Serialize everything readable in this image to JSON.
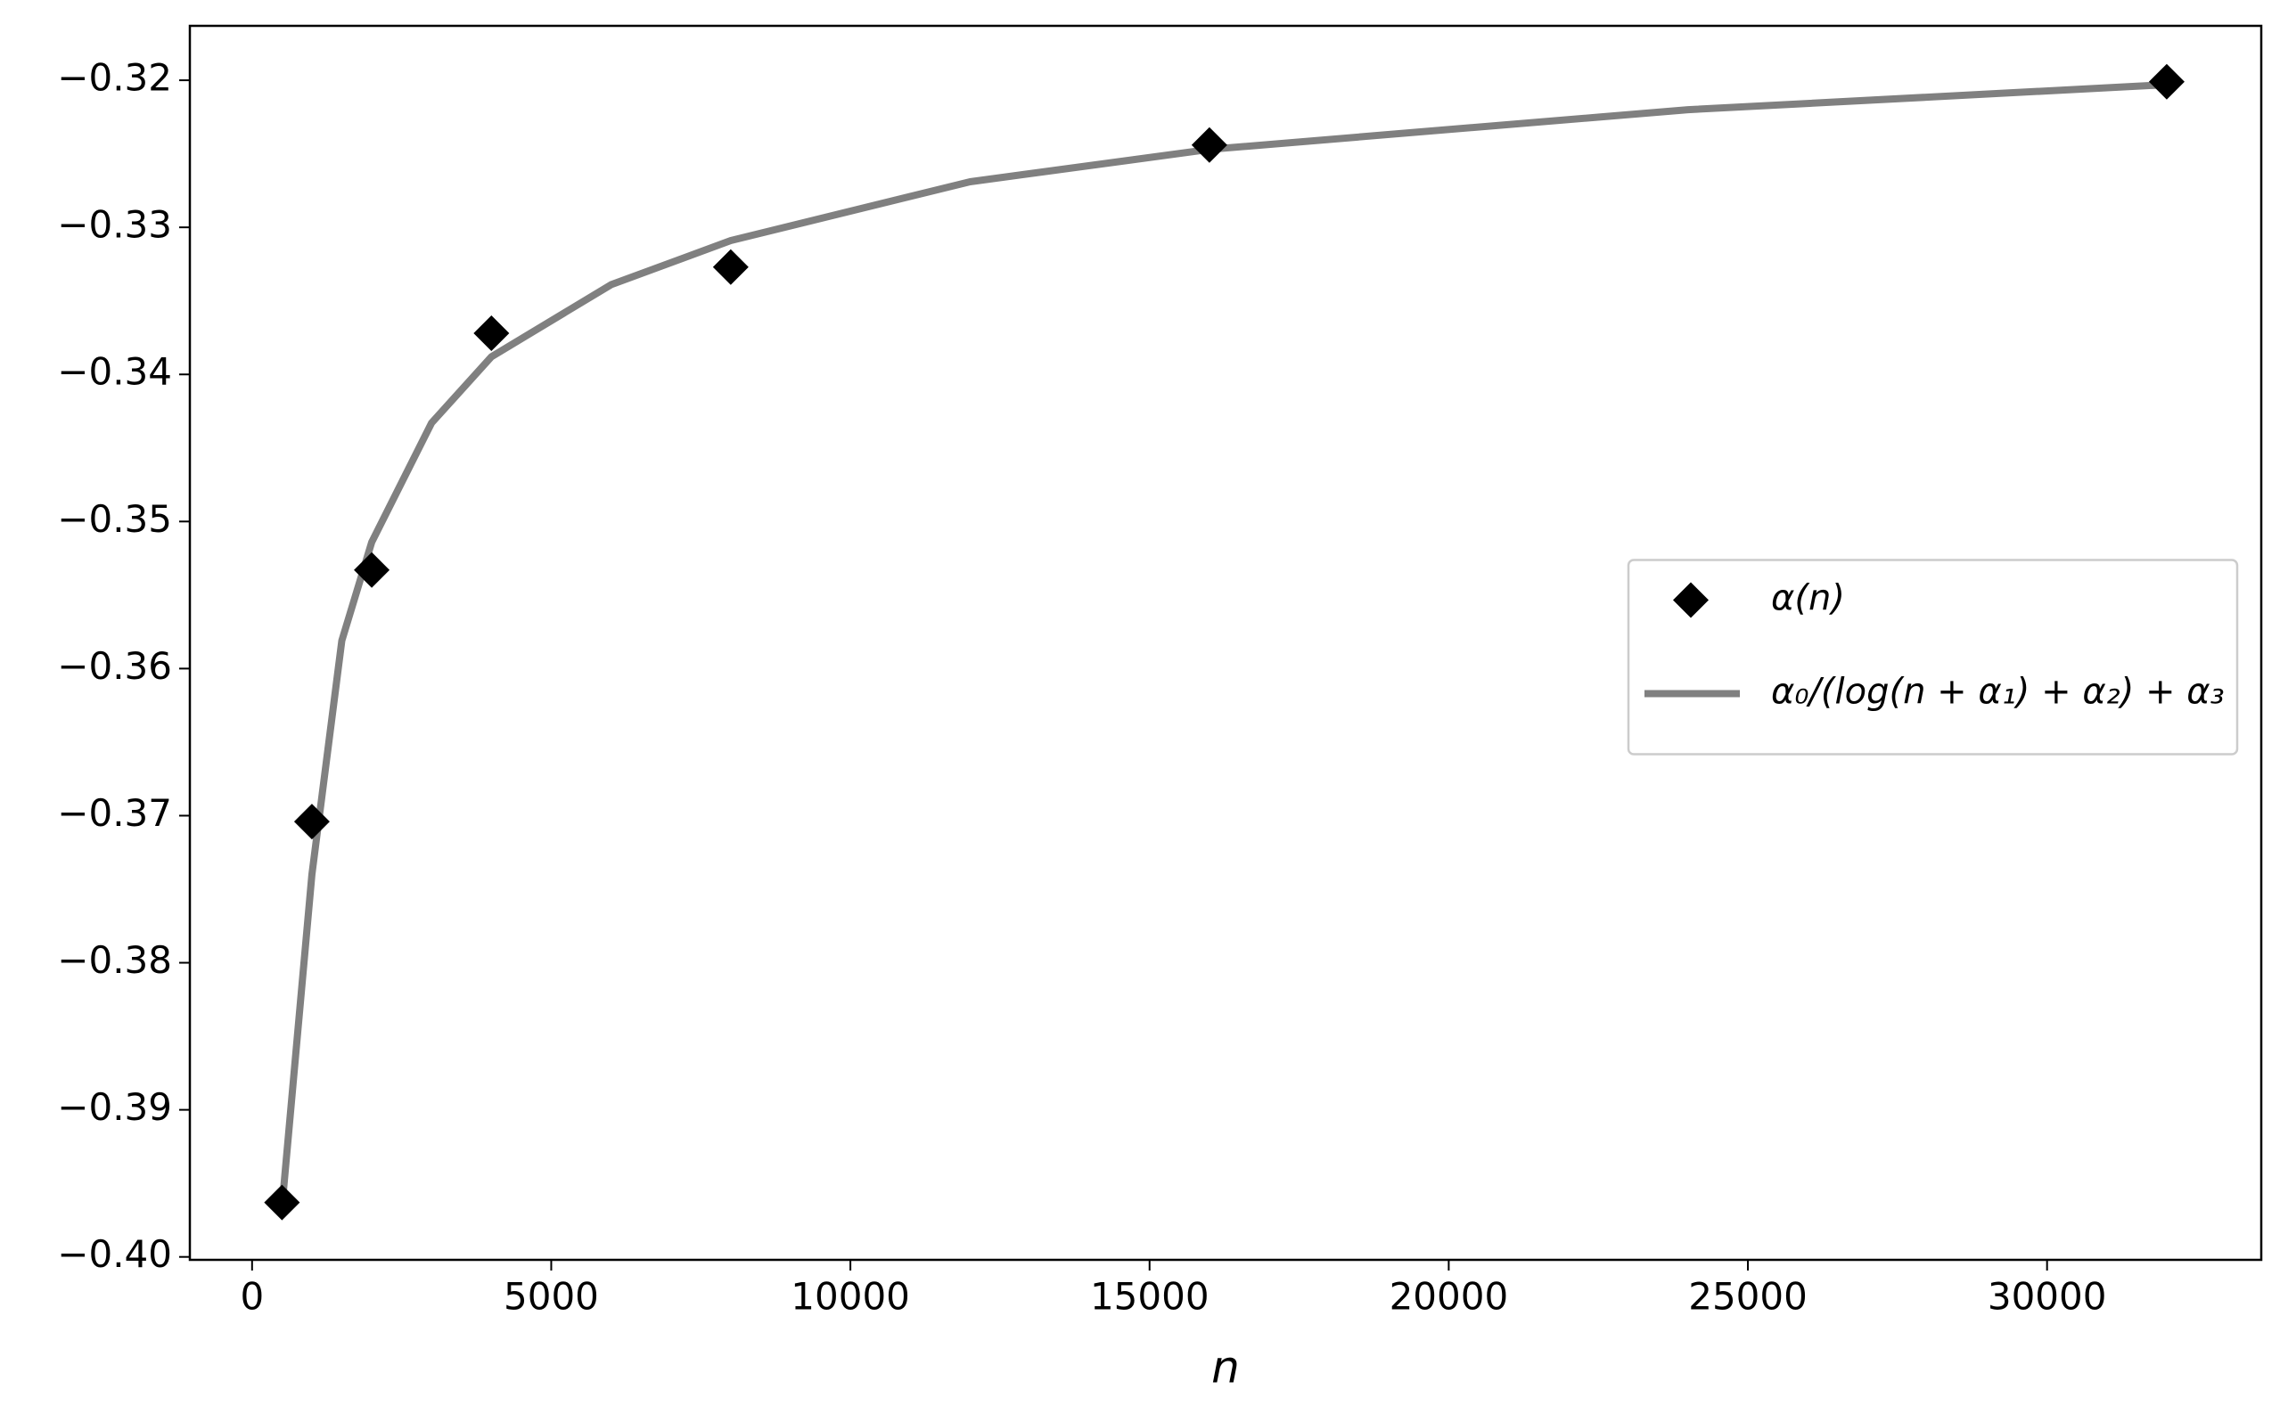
{
  "chart_data": {
    "type": "scatter",
    "x_label": "n",
    "xlim": [
      -1040,
      33580
    ],
    "ylim": [
      -0.4002,
      -0.3163
    ],
    "xticks": [
      0,
      5000,
      10000,
      15000,
      20000,
      25000,
      30000
    ],
    "yticks": [
      {
        "value": -0.32,
        "label": "−0.32"
      },
      {
        "value": -0.33,
        "label": "−0.33"
      },
      {
        "value": -0.34,
        "label": "−0.34"
      },
      {
        "value": -0.35,
        "label": "−0.35"
      },
      {
        "value": -0.36,
        "label": "−0.36"
      },
      {
        "value": -0.37,
        "label": "−0.37"
      },
      {
        "value": -0.38,
        "label": "−0.38"
      },
      {
        "value": -0.39,
        "label": "−0.39"
      },
      {
        "value": -0.4,
        "label": "−0.40"
      }
    ],
    "legend": "center right",
    "series": [
      {
        "name": "α(n)",
        "kind": "markers",
        "marker": "diamond",
        "color": "#000000",
        "x": [
          500,
          1000,
          2000,
          4000,
          8000,
          16000,
          32000
        ],
        "values": [
          -0.3963,
          -0.3704,
          -0.3533,
          -0.3372,
          -0.3327,
          -0.3244,
          -0.3201
        ]
      },
      {
        "name": "α₀/(log(n + α₁) + α₂) + α₃",
        "kind": "line",
        "color": "#808080",
        "x": [
          500,
          1000,
          1500,
          2000,
          3000,
          4000,
          6000,
          8000,
          12000,
          16000,
          24000,
          32000
        ],
        "values": [
          -0.3966,
          -0.374,
          -0.3581,
          -0.3514,
          -0.3433,
          -0.3388,
          -0.3339,
          -0.3309,
          -0.3269,
          -0.3247,
          -0.322,
          -0.3203
        ]
      }
    ]
  }
}
